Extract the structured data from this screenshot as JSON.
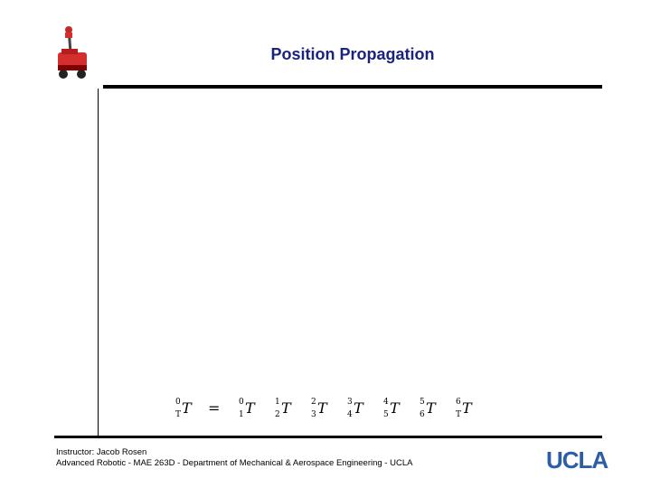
{
  "slide": {
    "title": "Position Propagation",
    "logo_icon": "robot-logo-icon"
  },
  "equation": {
    "lhs": {
      "sup": "0",
      "sub": "T",
      "symbol": "T"
    },
    "equals": "=",
    "terms": [
      {
        "sup": "0",
        "sub": "1",
        "symbol": "T"
      },
      {
        "sup": "1",
        "sub": "2",
        "symbol": "T"
      },
      {
        "sup": "2",
        "sub": "3",
        "symbol": "T"
      },
      {
        "sup": "3",
        "sub": "4",
        "symbol": "T"
      },
      {
        "sup": "4",
        "sub": "5",
        "symbol": "T"
      },
      {
        "sup": "5",
        "sub": "6",
        "symbol": "T"
      },
      {
        "sup": "6",
        "sub": "T",
        "symbol": "T"
      }
    ]
  },
  "footer": {
    "line1": "Instructor: Jacob Rosen",
    "line2": "Advanced Robotic - MAE 263D - Department of Mechanical & Aerospace Engineering - UCLA",
    "brand": "UCLA",
    "brand_color": "#2c5da8"
  }
}
